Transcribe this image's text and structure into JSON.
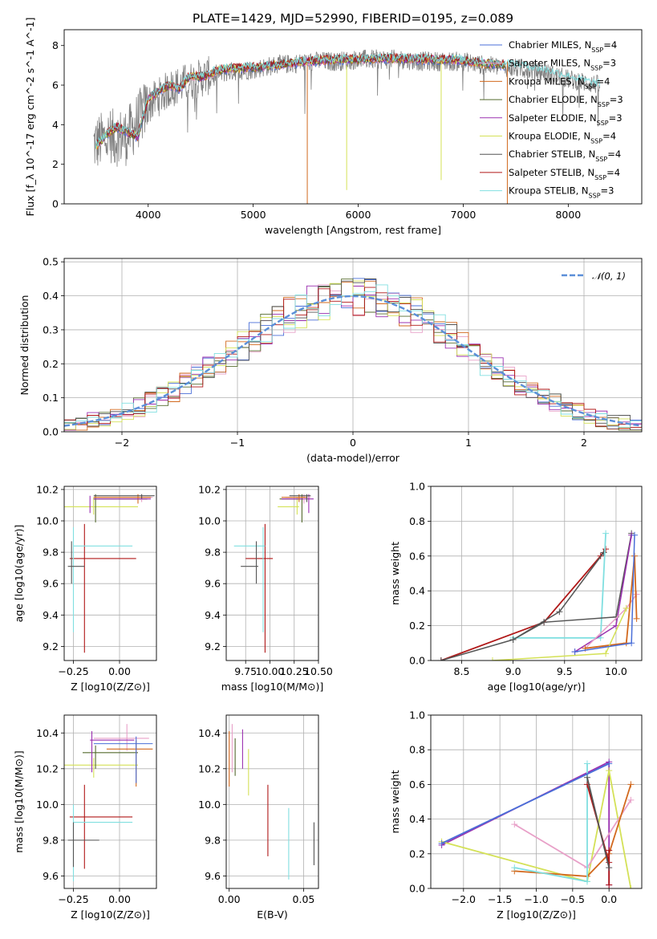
{
  "figure": {
    "title": "PLATE=1429, MJD=52990, FIBERID=0195, z=0.089"
  },
  "colors": {
    "chabrier_miles": "#4a6fd8",
    "salpeter_miles": "#e8a0c8",
    "kroupa_miles": "#d2691e",
    "chabrier_elodie": "#556b2f",
    "salpeter_elodie": "#9b30b0",
    "kroupa_elodie": "#d4e157",
    "chabrier_stelib": "#555555",
    "salpeter_stelib": "#b01818",
    "kroupa_stelib": "#80dfe0",
    "data": "#808080",
    "gaussian": "#5b8fd8"
  },
  "chart_data": [
    {
      "id": "spectrum",
      "type": "line",
      "xlabel": "wavelength [Angstrom, rest frame]",
      "ylabel": "Flux [f_λ 10^-17 erg cm^-2 s^-1 A^-1]",
      "xlim": [
        3200,
        8700
      ],
      "ylim": [
        0,
        8.8
      ],
      "xticks": [
        4000,
        5000,
        6000,
        7000,
        8000
      ],
      "yticks": [
        0,
        2,
        4,
        6,
        8
      ],
      "grid": false,
      "legend_position": "upper-right",
      "legend": [
        "Chabrier MILES, N_SSP=4",
        "Salpeter MILES, N_SSP=3",
        "Kroupa MILES, N_SSP=4",
        "Chabrier ELODIE, N_SSP=3",
        "Salpeter ELODIE, N_SSP=3",
        "Kroupa ELODIE, N_SSP=4",
        "Chabrier STELIB, N_SSP=4",
        "Salpeter STELIB, N_SSP=4",
        "Kroupa STELIB, N_SSP=3"
      ],
      "model_continuum": {
        "x": [
          3500,
          3600,
          3700,
          3800,
          3900,
          4000,
          4100,
          4200,
          4300,
          4400,
          4500,
          4700,
          5000,
          5200,
          5500,
          5800,
          6000,
          6300,
          6600,
          6900,
          7200,
          7400
        ],
        "y": [
          2.9,
          3.5,
          3.9,
          3.6,
          3.4,
          5.3,
          5.7,
          6.0,
          5.8,
          6.5,
          6.4,
          6.8,
          6.9,
          7.0,
          7.2,
          7.3,
          7.3,
          7.35,
          7.3,
          7.3,
          7.1,
          7.0
        ]
      },
      "kroupa_stelib_extension": {
        "x": [
          7400,
          7600,
          7800,
          8000,
          8200,
          8300
        ],
        "y": [
          7.1,
          6.9,
          6.7,
          6.4,
          6.1,
          6.0
        ]
      },
      "data_continuum": {
        "x": [
          3480,
          3600,
          3800,
          4000,
          4200,
          4400,
          4600,
          4800,
          5000,
          5200,
          5400,
          5600,
          5800,
          6000,
          6200,
          6400,
          6600,
          6800,
          7000,
          7200,
          7400,
          7600,
          7800,
          8000,
          8200,
          8300
        ],
        "y": [
          3.0,
          3.3,
          3.4,
          5.0,
          5.8,
          6.2,
          6.5,
          6.7,
          6.8,
          7.0,
          7.1,
          7.2,
          7.2,
          7.3,
          7.3,
          7.3,
          7.2,
          7.2,
          7.2,
          7.0,
          6.9,
          6.8,
          6.6,
          6.3,
          6.1,
          6.0
        ]
      }
    },
    {
      "id": "residuals",
      "type": "line",
      "xlabel": "(data-model)/error",
      "ylabel": "Normed distribution",
      "xlim": [
        -2.5,
        2.5
      ],
      "ylim": [
        0,
        0.51
      ],
      "xticks": [
        -2,
        -1,
        0,
        1,
        2
      ],
      "yticks": [
        0.0,
        0.1,
        0.2,
        0.3,
        0.4,
        0.5
      ],
      "grid": true,
      "legend_position": "upper-right",
      "legend": [
        "𝒩(0, 1)"
      ],
      "bin_width": 0.1
    },
    {
      "id": "Z_vs_age",
      "type": "scatter",
      "xlabel": "Z [log10(Z/Z⊙)]",
      "ylabel": "age [log10(age/yr)]",
      "xlim": [
        -0.3,
        0.2
      ],
      "ylim": [
        9.11,
        10.22
      ],
      "xticks": [
        -0.25,
        0.0
      ],
      "yticks": [
        9.2,
        9.4,
        9.6,
        9.8,
        10.0,
        10.2
      ],
      "grid": true
    },
    {
      "id": "mass_vs_age",
      "type": "scatter",
      "xlabel": "mass [log10(M/M⊙)]",
      "ylabel": "",
      "xlim": [
        9.55,
        10.5
      ],
      "ylim": [
        9.11,
        10.22
      ],
      "xticks": [
        9.75,
        10.0,
        10.25,
        10.5
      ],
      "yticks": [
        9.2,
        9.4,
        9.6,
        9.8,
        10.0,
        10.2
      ],
      "grid": true
    },
    {
      "id": "age_vs_massweight",
      "type": "line",
      "xlabel": "age [log10(age/yr)]",
      "ylabel": "mass weight",
      "xlim": [
        8.2,
        10.25
      ],
      "ylim": [
        0,
        1.0
      ],
      "xticks": [
        8.5,
        9.0,
        9.5,
        10.0
      ],
      "yticks": [
        0.0,
        0.2,
        0.4,
        0.6,
        0.8,
        1.0
      ],
      "grid": true
    },
    {
      "id": "Z_vs_mass",
      "type": "scatter",
      "xlabel": "Z [log10(Z/Z⊙)]",
      "ylabel": "mass [log10(M/M⊙)]",
      "xlim": [
        -0.3,
        0.2
      ],
      "ylim": [
        9.53,
        10.5
      ],
      "xticks": [
        -0.25,
        0.0
      ],
      "yticks": [
        9.6,
        9.8,
        10.0,
        10.2,
        10.4
      ],
      "grid": true
    },
    {
      "id": "EBV_vs_mass",
      "type": "scatter",
      "xlabel": "E(B-V)",
      "ylabel": "",
      "xlim": [
        -0.002,
        0.06
      ],
      "ylim": [
        9.53,
        10.5
      ],
      "xticks": [
        0.0,
        0.05
      ],
      "yticks": [
        9.6,
        9.8,
        10.0,
        10.2,
        10.4
      ],
      "grid": true
    },
    {
      "id": "Z_vs_massweight",
      "type": "line",
      "xlabel": "Z [log10(Z/Z⊙)]",
      "ylabel": "mass weight",
      "xlim": [
        -2.45,
        0.45
      ],
      "ylim": [
        0,
        1.0
      ],
      "xticks": [
        -2.0,
        -1.5,
        -1.0,
        -0.5,
        0.0
      ],
      "yticks": [
        0.0,
        0.2,
        0.4,
        0.6,
        0.8,
        1.0
      ],
      "grid": true
    }
  ]
}
